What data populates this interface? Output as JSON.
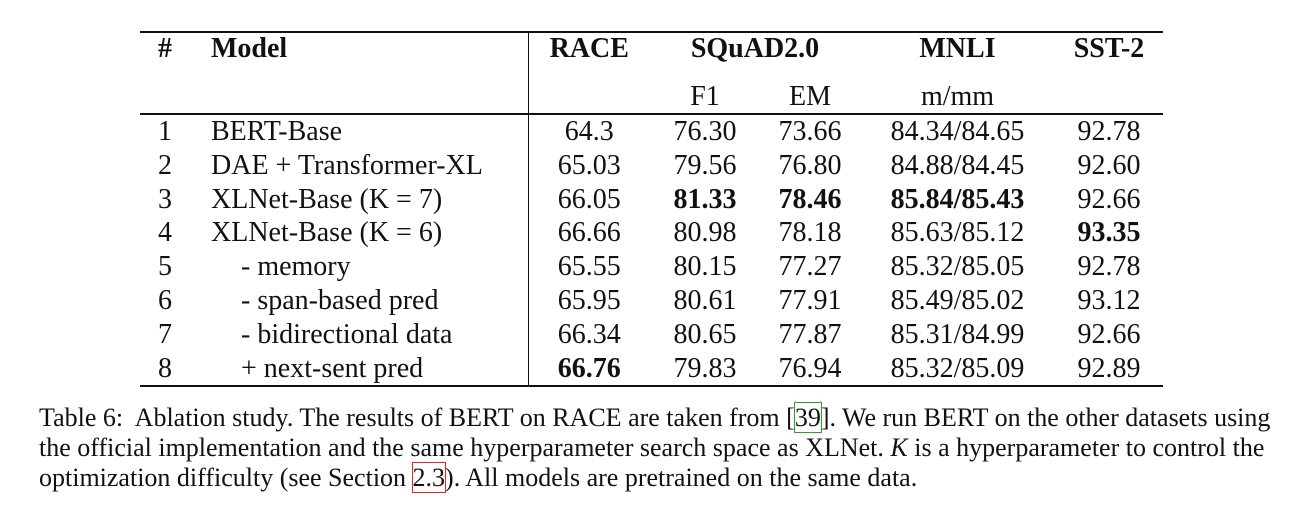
{
  "table": {
    "header": {
      "number": "#",
      "model": "Model",
      "race": "RACE",
      "squad": "SQuAD2.0",
      "squad_sub": [
        "F1",
        "EM"
      ],
      "mnli": "MNLI",
      "mnli_sub": "m/mm",
      "sst2": "SST-2"
    },
    "rows": [
      [
        "1",
        "BERT-Base",
        "64.3",
        "76.30",
        "73.66",
        "84.34/84.65",
        "92.78"
      ],
      [
        "2",
        "DAE + Transformer-XL",
        "65.03",
        "79.56",
        "76.80",
        "84.88/84.45",
        "92.60"
      ],
      [
        "3",
        "XLNet-Base (K = 7)",
        "66.05",
        "81.33",
        "78.46",
        "85.84/85.43",
        "92.66"
      ],
      [
        "4",
        "XLNet-Base (K = 6)",
        "66.66",
        "80.98",
        "78.18",
        "85.63/85.12",
        "93.35"
      ],
      [
        "5",
        "- memory",
        "65.55",
        "80.15",
        "77.27",
        "85.32/85.05",
        "92.78"
      ],
      [
        "6",
        "- span-based pred",
        "65.95",
        "80.61",
        "77.91",
        "85.49/85.02",
        "93.12"
      ],
      [
        "7",
        "- bidirectional data",
        "66.34",
        "80.65",
        "77.87",
        "85.31/84.99",
        "92.66"
      ],
      [
        "8",
        "+ next-sent pred",
        "66.76",
        "79.83",
        "76.94",
        "85.32/85.09",
        "92.89"
      ]
    ]
  },
  "caption": {
    "label": "Table 6:",
    "parts": [
      "Ablation study. The results of BERT on RACE are taken from [",
      "39",
      "]. We run BERT on the other datasets using the official implementation and the same hyperparameter search space as XLNet. ",
      "K",
      " is a hyperparameter to control the optimization difficulty (see Section ",
      "2.3",
      "). All models are pretrained on the same data."
    ]
  }
}
